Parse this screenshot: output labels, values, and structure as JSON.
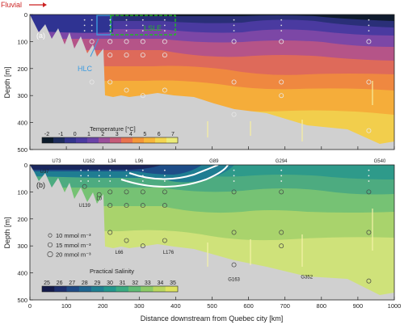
{
  "header": {
    "fluvial_label": "Fluvial"
  },
  "chart_data": [
    {
      "panel": "(a)",
      "type": "heatmap",
      "ylabel": "Depth [m]",
      "ylim": [
        500,
        0
      ],
      "xlim": [
        0,
        1000
      ],
      "x_ticks": [
        0,
        100,
        200,
        300,
        400,
        500,
        600,
        700,
        800,
        900,
        1000
      ],
      "y_ticks": [
        0,
        100,
        200,
        300,
        400,
        500
      ],
      "region_labels": [
        {
          "text": "LSLE",
          "color": "#22bb22"
        },
        {
          "text": "HLC",
          "color": "#3b9be0"
        }
      ],
      "colorbar": {
        "title": "Temperature [°C]",
        "ticks": [
          "-2",
          "-1",
          "0",
          "1",
          "2",
          "3",
          "4",
          "5",
          "6",
          "7"
        ],
        "colors": [
          "#0b1a2a",
          "#1d2c5c",
          "#32348c",
          "#4a3aa0",
          "#6a43a8",
          "#9a4f9a",
          "#c65b78",
          "#e8724e",
          "#f49638",
          "#f7b63a",
          "#f4d550",
          "#ecec7a"
        ]
      },
      "circle_depths": [
        100,
        150,
        250,
        280,
        300,
        320,
        350,
        370,
        430
      ],
      "column_stations": [
        130,
        170,
        220,
        265,
        310,
        370,
        560,
        690,
        930
      ]
    },
    {
      "panel": "(b)",
      "type": "heatmap",
      "xlabel": "Distance downstream from Quebec city [km]",
      "ylabel": "Depth [m]",
      "ylim": [
        500,
        0
      ],
      "xlim": [
        0,
        1000
      ],
      "x_ticks": [
        0,
        100,
        200,
        300,
        400,
        500,
        600,
        700,
        800,
        900,
        1000
      ],
      "y_ticks": [
        0,
        100,
        200,
        300,
        400,
        500
      ],
      "stations_top": [
        "U73",
        "U162",
        "L34",
        "L96",
        "G89",
        "G294",
        "G540"
      ],
      "stations_inner": [
        "U37",
        "U139",
        "L0",
        "L66",
        "L176",
        "G163",
        "G352"
      ],
      "legend": [
        {
          "label": "10 mmol m⁻³",
          "size": 10
        },
        {
          "label": "15 mmol m⁻³",
          "size": 15
        },
        {
          "label": "20 mmol m⁻³",
          "size": 20
        }
      ],
      "colorbar": {
        "title": "Practical Salinity",
        "ticks": [
          "25",
          "26",
          "27",
          "28",
          "29",
          "30",
          "31",
          "32",
          "33",
          "34",
          "35"
        ],
        "colors": [
          "#141a4a",
          "#1d2f6e",
          "#1f4a86",
          "#1f6590",
          "#1e7f92",
          "#23978d",
          "#3aab82",
          "#5fbc74",
          "#8ccb66",
          "#b9d75e",
          "#dde35e"
        ]
      }
    }
  ]
}
